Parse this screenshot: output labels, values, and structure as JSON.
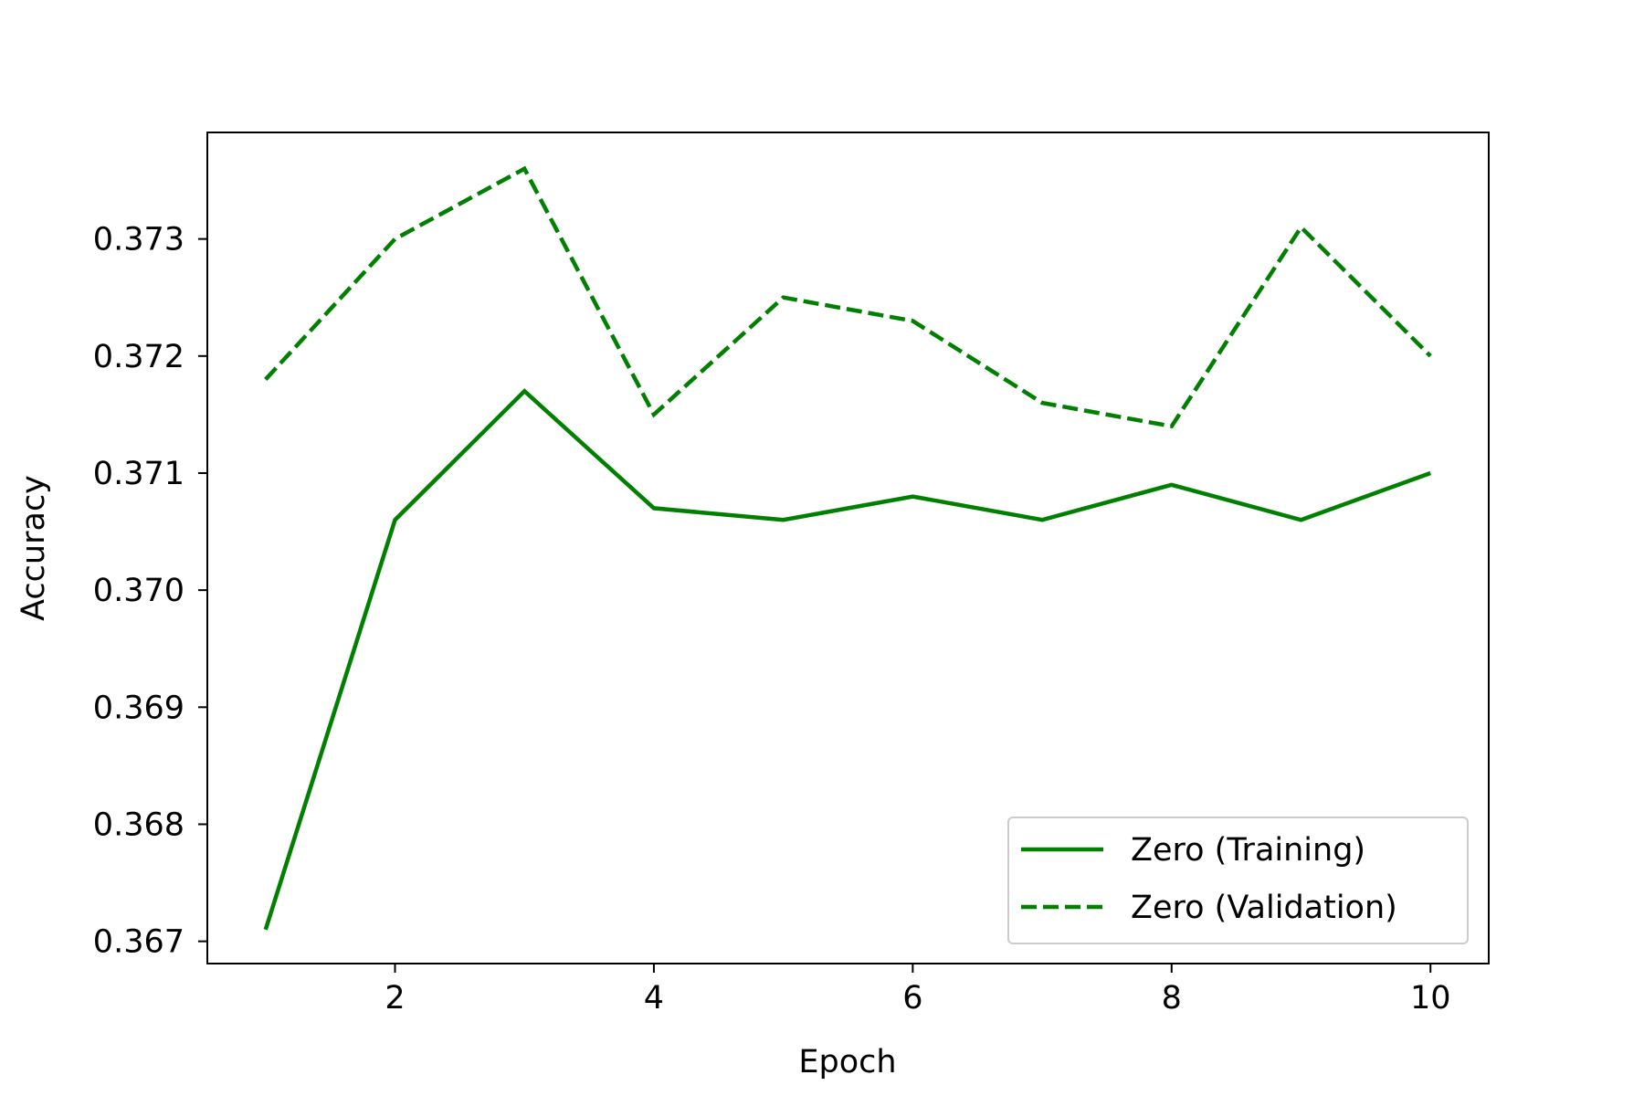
{
  "chart_data": {
    "type": "line",
    "title": "",
    "xlabel": "Epoch",
    "ylabel": "Accuracy",
    "xlim": [
      0.55,
      10.45
    ],
    "ylim": [
      0.36681,
      0.37391
    ],
    "xticks": [
      2,
      4,
      6,
      8,
      10
    ],
    "xtick_labels": [
      "2",
      "4",
      "6",
      "8",
      "10"
    ],
    "yticks": [
      0.367,
      0.368,
      0.369,
      0.37,
      0.371,
      0.372,
      0.373
    ],
    "ytick_labels": [
      "0.367",
      "0.368",
      "0.369",
      "0.370",
      "0.371",
      "0.372",
      "0.373"
    ],
    "grid": false,
    "legend_position": "lower-right",
    "x": [
      1,
      2,
      3,
      4,
      5,
      6,
      7,
      8,
      9,
      10
    ],
    "series": [
      {
        "name": "Zero (Training)",
        "color": "#008000",
        "style": "solid",
        "values": [
          0.3671,
          0.3706,
          0.3717,
          0.3707,
          0.3706,
          0.3708,
          0.3706,
          0.3709,
          0.3706,
          0.371
        ]
      },
      {
        "name": "Zero (Validation)",
        "color": "#008000",
        "style": "dashed",
        "values": [
          0.3718,
          0.373,
          0.3736,
          0.3715,
          0.3725,
          0.3723,
          0.3716,
          0.3714,
          0.3731,
          0.372
        ]
      }
    ]
  }
}
